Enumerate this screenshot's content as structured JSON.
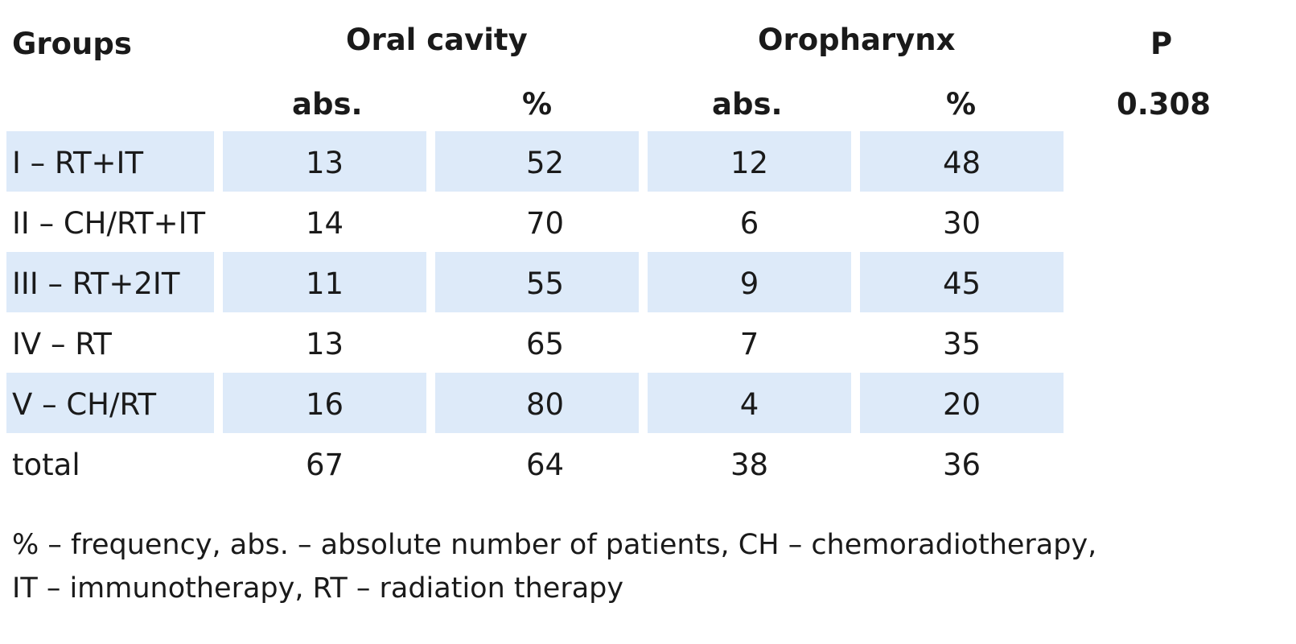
{
  "header": {
    "groups": "Groups",
    "oral_cavity": "Oral cavity",
    "oropharynx": "Oropharynx",
    "p": "P",
    "abs_1": "abs.",
    "pct_1": "%",
    "abs_2": "abs.",
    "pct_2": "%",
    "p_value": "0.308"
  },
  "rows": [
    {
      "group": "I – RT+IT",
      "oral_abs": "13",
      "oral_pct": "52",
      "oro_abs": "12",
      "oro_pct": "48",
      "shaded": true
    },
    {
      "group": "II – CH/RT+IT",
      "oral_abs": "14",
      "oral_pct": "70",
      "oro_abs": "6",
      "oro_pct": "30",
      "shaded": false
    },
    {
      "group": "III – RT+2IT",
      "oral_abs": "11",
      "oral_pct": "55",
      "oro_abs": "9",
      "oro_pct": "45",
      "shaded": true
    },
    {
      "group": "IV – RT",
      "oral_abs": "13",
      "oral_pct": "65",
      "oro_abs": "7",
      "oro_pct": "35",
      "shaded": false
    },
    {
      "group": "V – CH/RT",
      "oral_abs": "16",
      "oral_pct": "80",
      "oro_abs": "4",
      "oro_pct": "20",
      "shaded": true
    },
    {
      "group": "total",
      "oral_abs": "67",
      "oral_pct": "64",
      "oro_abs": "38",
      "oro_pct": "36",
      "shaded": false
    }
  ],
  "footnote": {
    "line1": "% – frequency, abs. – absolute number of patients, CH – chemoradiotherapy,",
    "line2": "IT – immunotherapy, RT – radiation therapy"
  },
  "colors": {
    "shade": "#ddeaf9",
    "text": "#1a1a1a"
  }
}
